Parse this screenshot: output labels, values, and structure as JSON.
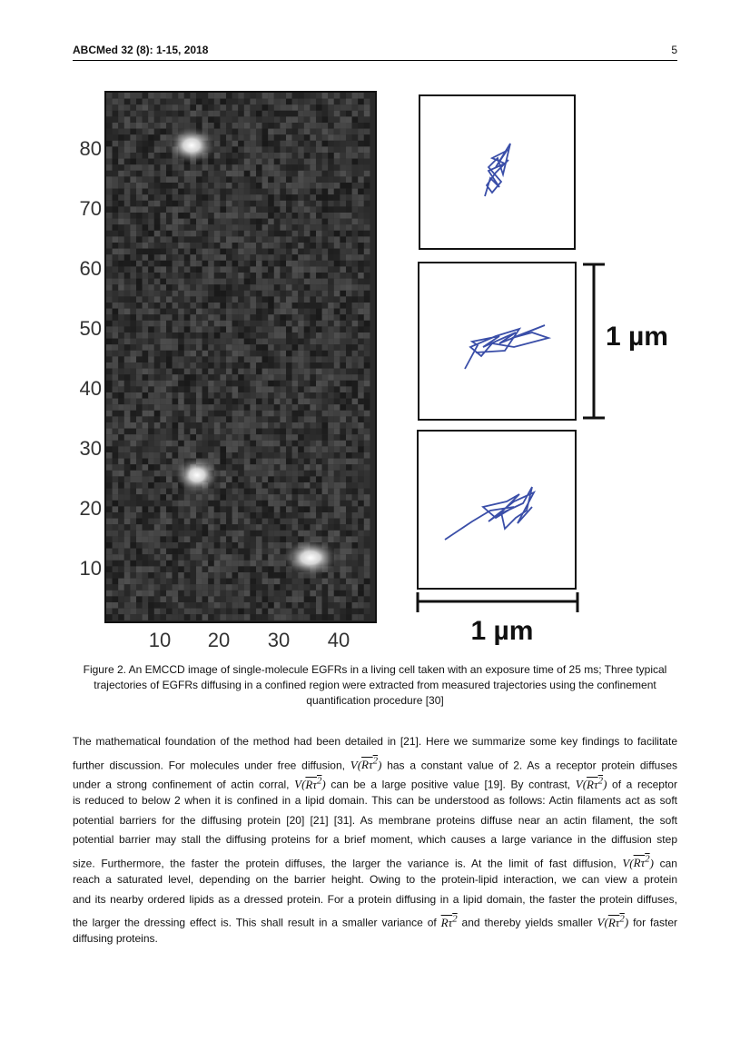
{
  "header": {
    "journal": "ABCMed 32 (8): 1-15, 2018",
    "page_number": "5"
  },
  "figure": {
    "image": {
      "y_ticks": [
        "80",
        "70",
        "60",
        "50",
        "40",
        "30",
        "20",
        "10"
      ],
      "x_ticks": [
        "10",
        "20",
        "30",
        "40"
      ],
      "spots": [
        "bright-spot-1",
        "bright-spot-2",
        "bright-spot-3"
      ]
    },
    "scale_bar_vertical_label": "1 µm",
    "scale_bar_horizontal_label": "1 µm",
    "trajectory_color": "#3a4ea8",
    "trajectories": [
      "trajectory-1",
      "trajectory-2",
      "trajectory-3"
    ]
  },
  "caption": {
    "line1": "Figure 2. An EMCCD image of single-molecule EGFRs in a living cell taken with an exposure time of 25 ms; Three typical",
    "line2": "trajectories of EGFRs diffusing in a confined region were extracted from measured trajectories using the confinement",
    "line3": "quantification procedure [30]"
  },
  "body": {
    "math_V": "V(",
    "math_R": "Rτ",
    "math_sup": "2",
    "math_close": ")",
    "l1": "The mathematical foundation of the method had been detailed in [21]. Here we summarize some key findings to facilitate",
    "l2a": "further discussion. For molecules under free diffusion,",
    "l2b": "has a constant value of 2. As a receptor protein diffuses",
    "l3a": "under a strong confinement of actin corral,",
    "l3b": "can be a large positive value [19]. By contrast,",
    "l3c": "of a receptor",
    "l4": "is reduced to below 2 when it is confined in a lipid domain. This can be understood as follows: Actin filaments act as soft",
    "l5": "potential barriers for the diffusing protein [20] [21] [31]. As membrane proteins diffuse near an actin filament, the soft",
    "l6": "potential barrier may stall the diffusing proteins for a brief moment, which causes a large variance in the diffusion step",
    "l7a": "size. Furthermore, the faster the protein diffuses, the larger the variance is. At the limit of fast diffusion,",
    "l7b": "can",
    "l8": "reach a saturated level, depending on the barrier height. Owing to the protein-lipid interaction, we can view a protein",
    "l9": "and its nearby ordered lipids as a dressed protein. For a protein diffusing in a lipid domain, the faster the protein diffuses,",
    "l10a": "the larger the dressing effect is. This shall result in a smaller variance of",
    "l10b": "and thereby yields smaller",
    "l10c": "for faster",
    "l11": "diffusing proteins."
  }
}
